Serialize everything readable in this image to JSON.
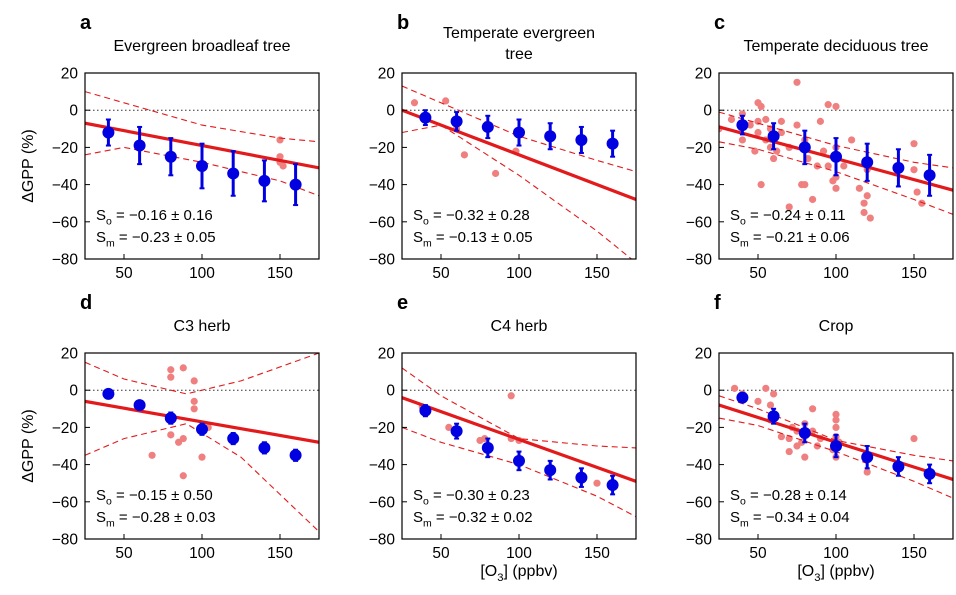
{
  "chart_data": [
    {
      "panel": "a",
      "title": "Evergreen broadleaf tree",
      "type": "scatter",
      "xlim": [
        25,
        175
      ],
      "ylim": [
        -80,
        20
      ],
      "xticks": [
        50,
        100,
        150
      ],
      "yticks": [
        20,
        0,
        -20,
        -40,
        -60,
        -80
      ],
      "ylabel": "ΔGPP (%)",
      "xlabel": "",
      "stats": [
        "S_o = −0.16 ± 0.16",
        "S_m = −0.23 ± 0.05"
      ],
      "obs_points": [
        [
          150,
          -16
        ],
        [
          150,
          -25
        ],
        [
          150,
          -28
        ],
        [
          152,
          -30
        ]
      ],
      "model_points": [
        [
          40,
          -12,
          7
        ],
        [
          60,
          -19,
          10
        ],
        [
          80,
          -25,
          10
        ],
        [
          100,
          -30,
          12
        ],
        [
          120,
          -34,
          12
        ],
        [
          140,
          -38,
          11
        ],
        [
          160,
          -40,
          11
        ]
      ],
      "fit_line": [
        [
          25,
          -7
        ],
        [
          175,
          -31
        ]
      ],
      "ci_upper": [
        [
          25,
          10
        ],
        [
          50,
          4
        ],
        [
          100,
          -8
        ],
        [
          150,
          -15
        ],
        [
          175,
          -17
        ]
      ],
      "ci_lower": [
        [
          25,
          -24
        ],
        [
          50,
          -20
        ],
        [
          100,
          -28
        ],
        [
          150,
          -38
        ],
        [
          175,
          -46
        ]
      ]
    },
    {
      "panel": "b",
      "title": "Temperate evergreen tree",
      "type": "scatter",
      "xlim": [
        25,
        175
      ],
      "ylim": [
        -80,
        20
      ],
      "xticks": [
        50,
        100,
        150
      ],
      "yticks": [
        20,
        0,
        -20,
        -40,
        -60,
        -80
      ],
      "ylabel": "",
      "xlabel": "",
      "stats": [
        "S_o = −0.32 ± 0.28",
        "S_m = −0.13 ± 0.05"
      ],
      "obs_points": [
        [
          33,
          4
        ],
        [
          53,
          5
        ],
        [
          60,
          -10
        ],
        [
          65,
          -24
        ],
        [
          85,
          -34
        ],
        [
          98,
          -22
        ]
      ],
      "model_points": [
        [
          40,
          -4,
          4
        ],
        [
          60,
          -6,
          5
        ],
        [
          80,
          -9,
          6
        ],
        [
          100,
          -12,
          7
        ],
        [
          120,
          -14,
          7
        ],
        [
          140,
          -16,
          7
        ],
        [
          160,
          -18,
          7
        ]
      ],
      "fit_line": [
        [
          25,
          0
        ],
        [
          175,
          -48
        ]
      ],
      "ci_upper": [
        [
          25,
          13
        ],
        [
          50,
          4
        ],
        [
          100,
          -14
        ],
        [
          150,
          -27
        ],
        [
          175,
          -33
        ]
      ],
      "ci_lower": [
        [
          25,
          -12
        ],
        [
          50,
          -8
        ],
        [
          100,
          -35
        ],
        [
          150,
          -65
        ],
        [
          175,
          -82
        ]
      ]
    },
    {
      "panel": "c",
      "title": "Temperate deciduous tree",
      "type": "scatter",
      "xlim": [
        25,
        175
      ],
      "ylim": [
        -80,
        20
      ],
      "xticks": [
        50,
        100,
        150
      ],
      "yticks": [
        20,
        0,
        -20,
        -40,
        -60,
        -80
      ],
      "ylabel": "",
      "xlabel": "",
      "stats": [
        "S_o = −0.24 ± 0.11",
        "S_m = −0.21 ± 0.06"
      ],
      "obs_points": [
        [
          25,
          -10
        ],
        [
          33,
          -5
        ],
        [
          40,
          -2
        ],
        [
          40,
          -16
        ],
        [
          45,
          -8
        ],
        [
          48,
          -22
        ],
        [
          50,
          4
        ],
        [
          50,
          -6
        ],
        [
          50,
          -12
        ],
        [
          52,
          2
        ],
        [
          52,
          -40
        ],
        [
          55,
          -5
        ],
        [
          55,
          -16
        ],
        [
          58,
          -10
        ],
        [
          58,
          -20
        ],
        [
          60,
          -26
        ],
        [
          62,
          -22
        ],
        [
          65,
          -6
        ],
        [
          65,
          -12
        ],
        [
          70,
          -20
        ],
        [
          70,
          -52
        ],
        [
          75,
          15
        ],
        [
          75,
          -8
        ],
        [
          78,
          -40
        ],
        [
          80,
          -16
        ],
        [
          80,
          -40
        ],
        [
          82,
          -26
        ],
        [
          85,
          -48
        ],
        [
          88,
          -30
        ],
        [
          90,
          -6
        ],
        [
          92,
          -22
        ],
        [
          95,
          3
        ],
        [
          95,
          -30
        ],
        [
          98,
          -38
        ],
        [
          100,
          2
        ],
        [
          100,
          -20
        ],
        [
          100,
          -36
        ],
        [
          100,
          -42
        ],
        [
          105,
          -30
        ],
        [
          110,
          -16
        ],
        [
          115,
          -42
        ],
        [
          118,
          -50
        ],
        [
          118,
          -55
        ],
        [
          120,
          -32
        ],
        [
          120,
          -46
        ],
        [
          122,
          -58
        ],
        [
          150,
          -18
        ],
        [
          150,
          -32
        ],
        [
          152,
          -44
        ],
        [
          155,
          -50
        ]
      ],
      "model_points": [
        [
          40,
          -8,
          5
        ],
        [
          60,
          -14,
          7
        ],
        [
          80,
          -20,
          9
        ],
        [
          100,
          -25,
          10
        ],
        [
          120,
          -28,
          10
        ],
        [
          140,
          -31,
          10
        ],
        [
          160,
          -35,
          11
        ]
      ],
      "fit_line": [
        [
          25,
          -9
        ],
        [
          175,
          -43
        ]
      ],
      "ci_upper": [
        [
          25,
          -1
        ],
        [
          50,
          -7
        ],
        [
          100,
          -19
        ],
        [
          150,
          -28
        ],
        [
          175,
          -31
        ]
      ],
      "ci_lower": [
        [
          25,
          -17
        ],
        [
          50,
          -21
        ],
        [
          100,
          -33
        ],
        [
          150,
          -48
        ],
        [
          175,
          -56
        ]
      ]
    },
    {
      "panel": "d",
      "title": "C3 herb",
      "type": "scatter",
      "xlim": [
        25,
        175
      ],
      "ylim": [
        -80,
        20
      ],
      "xticks": [
        50,
        100,
        150
      ],
      "yticks": [
        20,
        0,
        -20,
        -40,
        -60,
        -80
      ],
      "ylabel": "ΔGPP (%)",
      "xlabel": "",
      "stats": [
        "S_o = −0.15 ± 0.50",
        "S_m = −0.28 ± 0.03"
      ],
      "obs_points": [
        [
          68,
          -35
        ],
        [
          80,
          11
        ],
        [
          80,
          7
        ],
        [
          88,
          12
        ],
        [
          95,
          5
        ],
        [
          95,
          -10
        ],
        [
          95,
          -6
        ],
        [
          80,
          -24
        ],
        [
          85,
          -28
        ],
        [
          88,
          -26
        ],
        [
          88,
          -46
        ],
        [
          100,
          -36
        ],
        [
          104,
          -20
        ]
      ],
      "model_points": [
        [
          40,
          -2,
          2
        ],
        [
          60,
          -8,
          2
        ],
        [
          80,
          -15,
          3
        ],
        [
          100,
          -21,
          3
        ],
        [
          120,
          -26,
          3
        ],
        [
          140,
          -31,
          3
        ],
        [
          160,
          -35,
          3
        ]
      ],
      "fit_line": [
        [
          25,
          -6
        ],
        [
          175,
          -28
        ]
      ],
      "ci_upper": [
        [
          25,
          15
        ],
        [
          50,
          6
        ],
        [
          90,
          -2
        ],
        [
          125,
          5
        ],
        [
          175,
          20
        ]
      ],
      "ci_lower": [
        [
          25,
          -35
        ],
        [
          50,
          -26
        ],
        [
          90,
          -18
        ],
        [
          125,
          -36
        ],
        [
          175,
          -76
        ]
      ]
    },
    {
      "panel": "e",
      "title": "C4 herb",
      "type": "scatter",
      "xlim": [
        25,
        175
      ],
      "ylim": [
        -80,
        20
      ],
      "xticks": [
        50,
        100,
        150
      ],
      "yticks": [
        20,
        0,
        -20,
        -40,
        -60,
        -80
      ],
      "ylabel": "",
      "xlabel": "[O3] (ppbv)",
      "stats": [
        "S_o = −0.30 ± 0.23",
        "S_m = −0.32 ± 0.02"
      ],
      "obs_points": [
        [
          38,
          -9
        ],
        [
          40,
          -12
        ],
        [
          55,
          -20
        ],
        [
          60,
          -21
        ],
        [
          75,
          -27
        ],
        [
          78,
          -26
        ],
        [
          95,
          -3
        ],
        [
          95,
          -26
        ],
        [
          100,
          -27
        ],
        [
          150,
          -50
        ]
      ],
      "model_points": [
        [
          40,
          -11,
          3
        ],
        [
          60,
          -22,
          4
        ],
        [
          80,
          -31,
          5
        ],
        [
          100,
          -38,
          5
        ],
        [
          120,
          -43,
          5
        ],
        [
          140,
          -47,
          5
        ],
        [
          160,
          -51,
          5
        ]
      ],
      "fit_line": [
        [
          25,
          -4
        ],
        [
          175,
          -49
        ]
      ],
      "ci_upper": [
        [
          25,
          12
        ],
        [
          50,
          -3
        ],
        [
          100,
          -26
        ],
        [
          150,
          -30
        ],
        [
          175,
          -31
        ]
      ],
      "ci_lower": [
        [
          25,
          -20
        ],
        [
          50,
          -28
        ],
        [
          100,
          -40
        ],
        [
          150,
          -57
        ],
        [
          175,
          -68
        ]
      ]
    },
    {
      "panel": "f",
      "title": "Crop",
      "type": "scatter",
      "xlim": [
        25,
        175
      ],
      "ylim": [
        -80,
        20
      ],
      "xticks": [
        50,
        100,
        150
      ],
      "yticks": [
        20,
        0,
        -20,
        -40,
        -60,
        -80
      ],
      "ylabel": "",
      "xlabel": "[O3] (ppbv)",
      "stats": [
        "S_o = −0.28 ± 0.14",
        "S_m = −0.34 ± 0.04"
      ],
      "obs_points": [
        [
          35,
          1
        ],
        [
          40,
          -2
        ],
        [
          50,
          -6
        ],
        [
          55,
          1
        ],
        [
          58,
          -8
        ],
        [
          58,
          -16
        ],
        [
          60,
          -2
        ],
        [
          65,
          -25
        ],
        [
          70,
          -26
        ],
        [
          70,
          -33
        ],
        [
          72,
          -20
        ],
        [
          75,
          -22
        ],
        [
          75,
          -30
        ],
        [
          78,
          -28
        ],
        [
          80,
          -18
        ],
        [
          80,
          -36
        ],
        [
          85,
          -10
        ],
        [
          85,
          -22
        ],
        [
          88,
          -30
        ],
        [
          90,
          -26
        ],
        [
          98,
          -32
        ],
        [
          100,
          -13
        ],
        [
          100,
          -16
        ],
        [
          100,
          -20
        ],
        [
          100,
          -25
        ],
        [
          100,
          -36
        ],
        [
          102,
          -28
        ],
        [
          120,
          -44
        ],
        [
          150,
          -26
        ]
      ],
      "model_points": [
        [
          40,
          -4,
          2
        ],
        [
          60,
          -14,
          4
        ],
        [
          80,
          -23,
          5
        ],
        [
          100,
          -30,
          6
        ],
        [
          120,
          -36,
          6
        ],
        [
          140,
          -41,
          5
        ],
        [
          160,
          -45,
          5
        ]
      ],
      "fit_line": [
        [
          25,
          -8
        ],
        [
          175,
          -48
        ]
      ],
      "ci_upper": [
        [
          25,
          -3
        ],
        [
          50,
          -10
        ],
        [
          100,
          -27
        ],
        [
          150,
          -35
        ],
        [
          175,
          -38
        ]
      ],
      "ci_lower": [
        [
          25,
          -15
        ],
        [
          50,
          -19
        ],
        [
          100,
          -33
        ],
        [
          150,
          -49
        ],
        [
          175,
          -58
        ]
      ]
    }
  ],
  "colors": {
    "obs": "#f08080",
    "model": "#0000e0",
    "fit": "#e31a1c",
    "ci": "#e31a1c"
  }
}
